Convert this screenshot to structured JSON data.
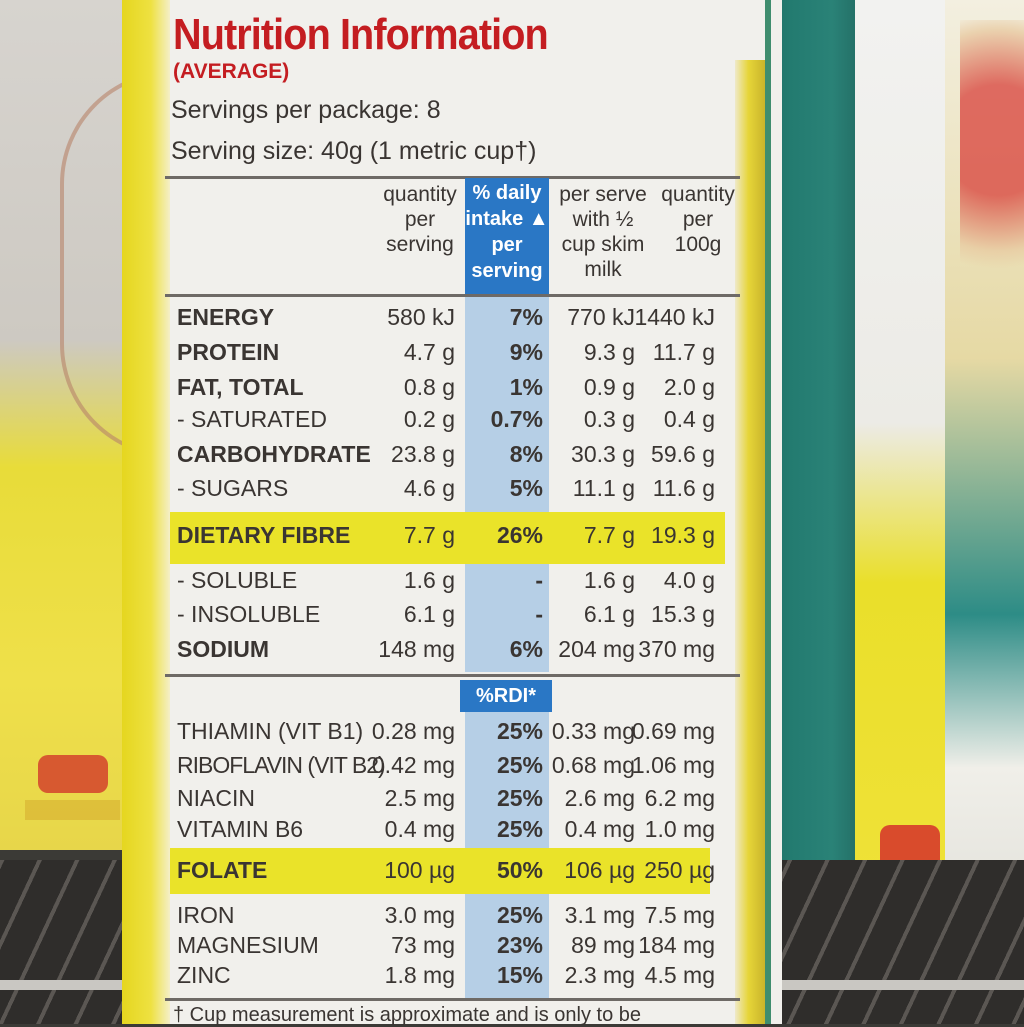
{
  "label": {
    "title": "Nutrition Information",
    "subtitle": "(AVERAGE)",
    "servings_per_package": "Servings per package: 8",
    "serving_size": "Serving size: 40g (1 metric cup†)",
    "footnote": "† Cup measurement is approximate and is only to be"
  },
  "columns": {
    "qty_serving": [
      "quantity",
      "per",
      "serving"
    ],
    "daily_intake": [
      "% daily",
      "intake ▲",
      "per",
      "serving"
    ],
    "with_milk": [
      "per serve",
      "with ½",
      "cup skim",
      "milk"
    ],
    "qty_100g": [
      "quantity",
      "per",
      "100g"
    ],
    "rdi": "%RDI*"
  },
  "nutrients": [
    {
      "name": "ENERGY",
      "qty": "580 kJ",
      "pct": "7%",
      "milk": "770 kJ",
      "per100": "1440 kJ"
    },
    {
      "name": "PROTEIN",
      "qty": "4.7 g",
      "pct": "9%",
      "milk": "9.3 g",
      "per100": "11.7 g"
    },
    {
      "name": "FAT, TOTAL",
      "qty": "0.8 g",
      "pct": "1%",
      "milk": "0.9 g",
      "per100": "2.0 g"
    },
    {
      "name": "- SATURATED",
      "qty": "0.2 g",
      "pct": "0.7%",
      "milk": "0.3 g",
      "per100": "0.4 g"
    },
    {
      "name": "CARBOHYDRATE",
      "qty": "23.8 g",
      "pct": "8%",
      "milk": "30.3 g",
      "per100": "59.6 g"
    },
    {
      "name": "- SUGARS",
      "qty": "4.6 g",
      "pct": "5%",
      "milk": "11.1 g",
      "per100": "11.6 g"
    },
    {
      "name": "DIETARY FIBRE",
      "qty": "7.7 g",
      "pct": "26%",
      "milk": "7.7 g",
      "per100": "19.3 g"
    },
    {
      "name": "- SOLUBLE",
      "qty": "1.6 g",
      "pct": "-",
      "milk": "1.6 g",
      "per100": "4.0 g"
    },
    {
      "name": "- INSOLUBLE",
      "qty": "6.1 g",
      "pct": "-",
      "milk": "6.1 g",
      "per100": "15.3 g"
    },
    {
      "name": "SODIUM",
      "qty": "148 mg",
      "pct": "6%",
      "milk": "204 mg",
      "per100": "370 mg"
    }
  ],
  "vitamins": [
    {
      "name": "THIAMIN (VIT B1)",
      "qty": "0.28 mg",
      "pct": "25%",
      "milk": "0.33 mg",
      "per100": "0.69 mg"
    },
    {
      "name": "RIBOFLAVIN (VIT B2)",
      "qty": "0.42 mg",
      "pct": "25%",
      "milk": "0.68 mg",
      "per100": "1.06 mg"
    },
    {
      "name": "NIACIN",
      "qty": "2.5 mg",
      "pct": "25%",
      "milk": "2.6 mg",
      "per100": "6.2 mg"
    },
    {
      "name": "VITAMIN B6",
      "qty": "0.4 mg",
      "pct": "25%",
      "milk": "0.4 mg",
      "per100": "1.0 mg"
    },
    {
      "name": "FOLATE",
      "qty": "100 µg",
      "pct": "50%",
      "milk": "106 µg",
      "per100": "250 µg"
    },
    {
      "name": "IRON",
      "qty": "3.0 mg",
      "pct": "25%",
      "milk": "3.1 mg",
      "per100": "7.5 mg"
    },
    {
      "name": "MAGNESIUM",
      "qty": "73 mg",
      "pct": "23%",
      "milk": "89 mg",
      "per100": "184 mg"
    },
    {
      "name": "ZINC",
      "qty": "1.8 mg",
      "pct": "15%",
      "milk": "2.3 mg",
      "per100": "4.5 mg"
    }
  ],
  "colors": {
    "title_red": "#c41d21",
    "header_blue": "#2a77c5",
    "column_blue": "#b6cfe6",
    "highlight_yellow": "#eae329"
  }
}
